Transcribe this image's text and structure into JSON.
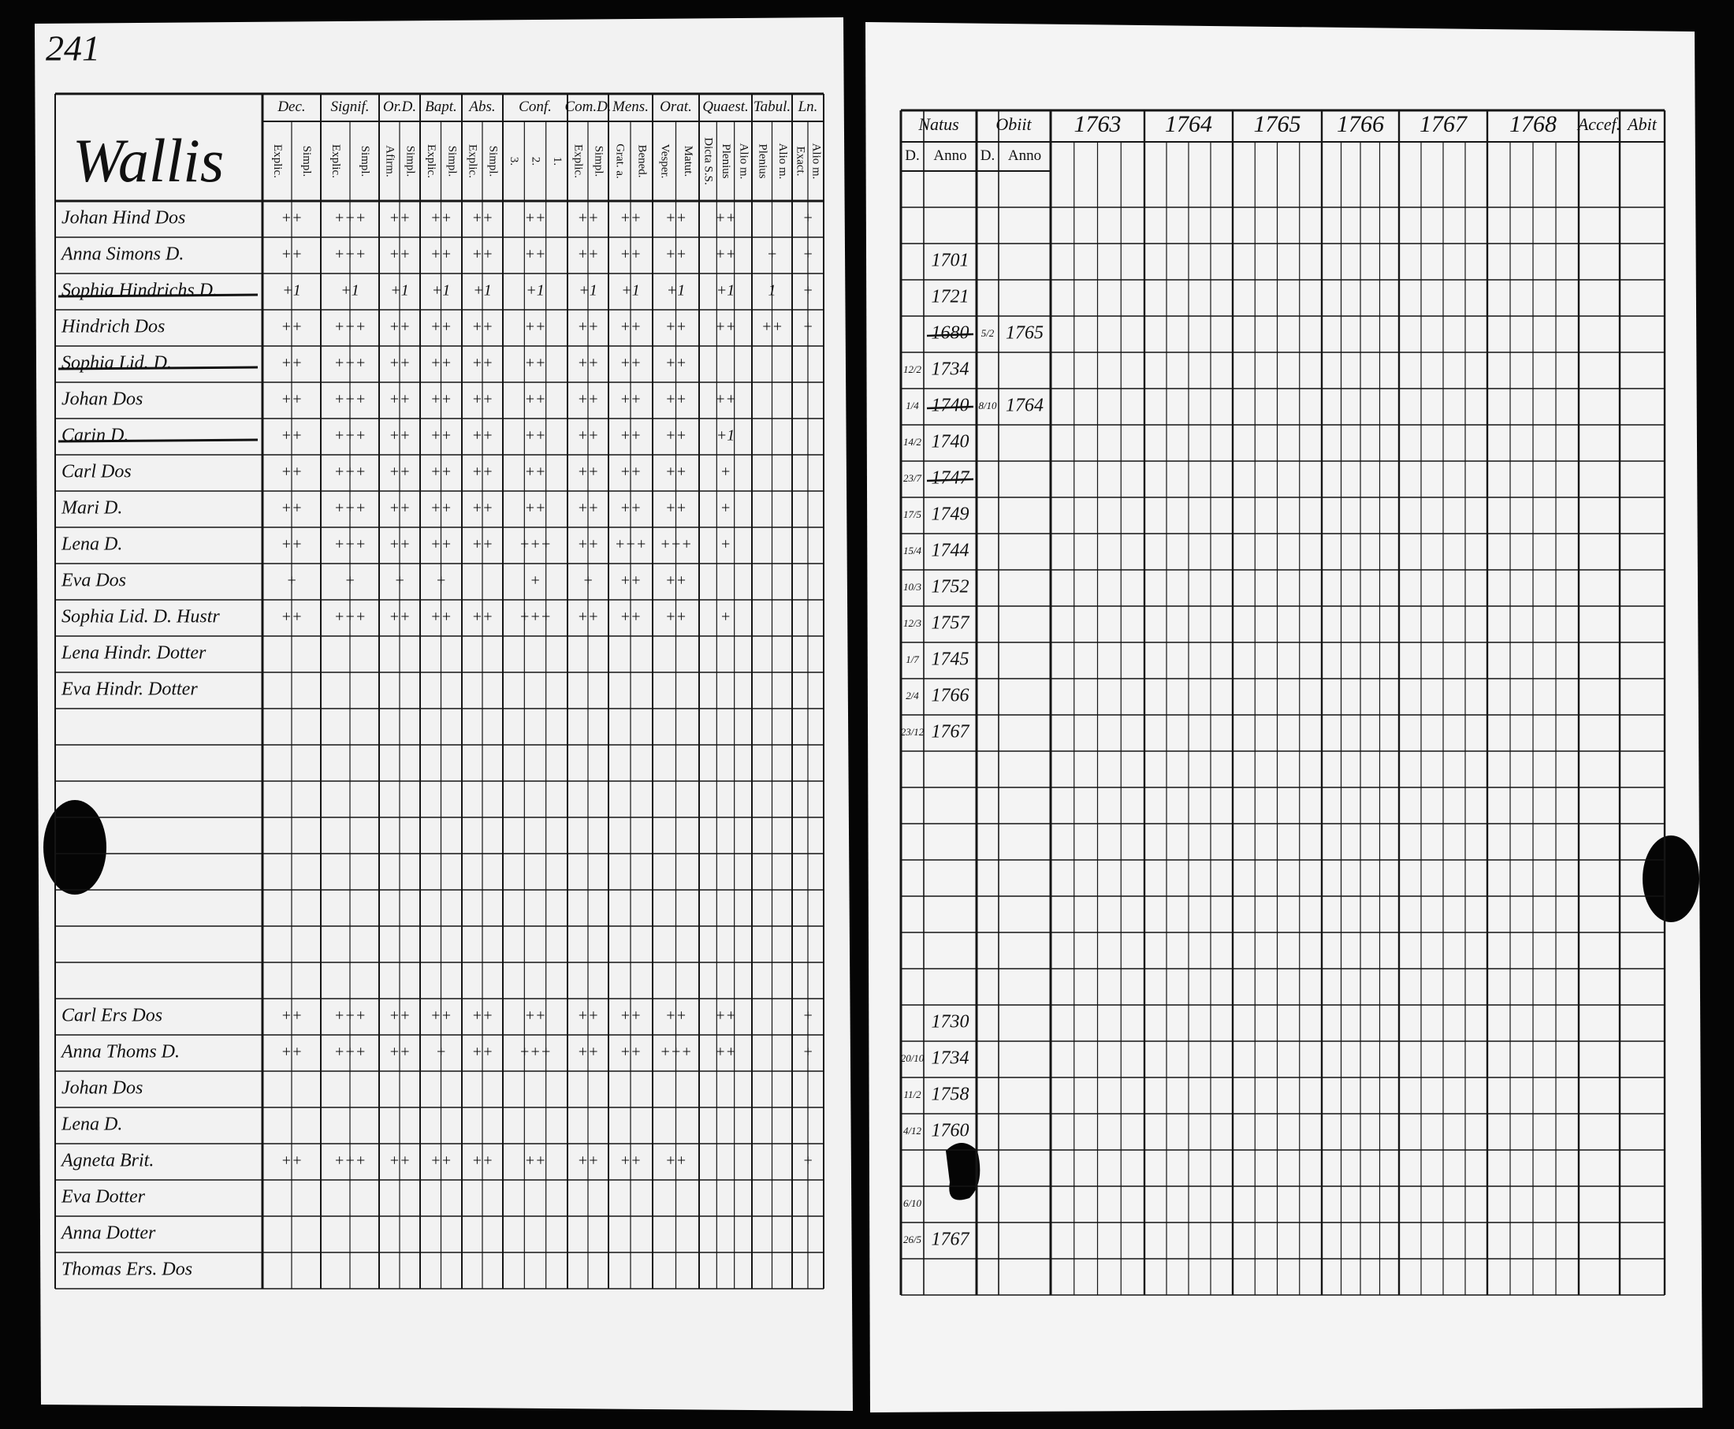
{
  "left_page": {
    "page_number": "241",
    "parish": "Wallis",
    "columns": [
      {
        "label": "Dec.",
        "sub": [
          "Explic.",
          "Simpl."
        ]
      },
      {
        "label": "Signif.",
        "sub": [
          "Explic.",
          "Simpl."
        ]
      },
      {
        "label": "Or.D.",
        "sub": [
          "Afirm.",
          "Simpl."
        ]
      },
      {
        "label": "Bapt.",
        "sub": [
          "Explic.",
          "Simpl."
        ]
      },
      {
        "label": "Abs.",
        "sub": [
          "Explic.",
          "Simpl."
        ]
      },
      {
        "label": "Conf.",
        "sub": [
          "3.",
          "2.",
          "1."
        ]
      },
      {
        "label": "Com.D.",
        "sub": [
          "Explic.",
          "Simpl."
        ]
      },
      {
        "label": "Mens.",
        "sub": [
          "Grat. a.",
          "Bened."
        ]
      },
      {
        "label": "Orat.",
        "sub": [
          "Vesper.",
          "Matut."
        ]
      },
      {
        "label": "Quaest.",
        "sub": [
          "Dicta S.S.",
          "Plenius",
          "Alio m."
        ]
      },
      {
        "label": "Tabul.",
        "sub": [
          "Plenius",
          "Alio m."
        ]
      },
      {
        "label": "Ln.",
        "sub": [
          "Exact.",
          "Alio m."
        ]
      }
    ],
    "rows": [
      {
        "name": "Johan Hind Dos",
        "marks": [
          "++",
          "+++",
          "++",
          "++",
          "++",
          "++",
          "++",
          "++",
          "++",
          "++",
          null,
          "+"
        ]
      },
      {
        "name": "Anna Simons D.",
        "marks": [
          "++",
          "+++",
          "++",
          "++",
          "++",
          "++",
          "++",
          "++",
          "++",
          "++",
          "+",
          "+"
        ]
      },
      {
        "name": "Sophia Hindrichs D.",
        "struck": true,
        "marks": [
          "+1",
          "+1",
          "+1",
          "+1",
          "+1",
          "+1",
          "+1",
          "+1",
          "+1",
          "+1",
          "1",
          "+"
        ]
      },
      {
        "name": "Hindrich Dos",
        "marks": [
          "++",
          "+++",
          "++",
          "++",
          "++",
          "++",
          "++",
          "++",
          "++",
          "++",
          "++",
          "+"
        ]
      },
      {
        "name": "Sophia Lid. D.",
        "struck": true,
        "marks": [
          "++",
          "+++",
          "++",
          "++",
          "++",
          "++",
          "++",
          "++",
          "++",
          null,
          null,
          null
        ]
      },
      {
        "name": "Johan Dos",
        "marks": [
          "++",
          "+++",
          "++",
          "++",
          "++",
          "++",
          "++",
          "++",
          "++",
          "++",
          null,
          null
        ]
      },
      {
        "name": "Carin D.",
        "struck": true,
        "marks": [
          "++",
          "+++",
          "++",
          "++",
          "++",
          "++",
          "++",
          "++",
          "++",
          "+1",
          null,
          null
        ]
      },
      {
        "name": "Carl Dos",
        "marks": [
          "++",
          "+++",
          "++",
          "++",
          "++",
          "++",
          "++",
          "++",
          "++",
          "+",
          null,
          null
        ]
      },
      {
        "name": "Mari D.",
        "marks": [
          "++",
          "+++",
          "++",
          "++",
          "++",
          "++",
          "++",
          "++",
          "++",
          "+",
          null,
          null
        ]
      },
      {
        "name": "Lena D.",
        "marks": [
          "++",
          "+++",
          "++",
          "++",
          "++",
          "+++",
          "++",
          "+++",
          "+++",
          "+",
          null,
          null
        ]
      },
      {
        "name": "Eva Dos",
        "marks": [
          "+",
          "+",
          "+",
          "+",
          null,
          "+",
          "+",
          "++",
          "++",
          null,
          null,
          null
        ]
      },
      {
        "name": "Sophia Lid. D. Hustr",
        "marks": [
          "++",
          "+++",
          "++",
          "++",
          "++",
          "+++",
          "++",
          "++",
          "++",
          "+",
          null,
          null
        ]
      },
      {
        "name": "Lena Hindr. Dotter"
      },
      {
        "name": "Eva Hindr. Dotter"
      },
      null,
      null,
      null,
      null,
      null,
      null,
      null,
      null,
      {
        "name": "Carl Ers Dos",
        "marks": [
          "++",
          "+++",
          "++",
          "++",
          "++",
          "++",
          "++",
          "++",
          "++",
          "++",
          null,
          "+"
        ]
      },
      {
        "name": "Anna Thoms D.",
        "marks": [
          "++",
          "+++",
          "++",
          "+",
          "++",
          "+++",
          "++",
          "++",
          "+++",
          "++",
          null,
          "+"
        ]
      },
      {
        "name": "Johan Dos"
      },
      {
        "name": "Lena D."
      },
      {
        "name": "Agneta Brit.",
        "marks": [
          "++",
          "+++",
          "++",
          "++",
          "++",
          "++",
          "++",
          "++",
          "++",
          null,
          null,
          "+"
        ]
      },
      {
        "name": "Eva Dotter"
      },
      {
        "name": "Anna Dotter"
      },
      {
        "name": "Thomas Ers. Dos"
      }
    ]
  },
  "right_page": {
    "headers": [
      "Natus",
      "Obiit",
      "1763",
      "1764",
      "1765",
      "1766",
      "1767",
      "1768",
      "Accef.",
      "Abit"
    ],
    "subheaders": [
      "D.",
      "Anno",
      "D.",
      "Anno"
    ],
    "rows": [
      null,
      null,
      {
        "anno": "1701"
      },
      {
        "anno": "1721"
      },
      {
        "anno": "1680",
        "struck": true,
        "obiit_d": "5/2",
        "obiit_anno": "1765"
      },
      {
        "d": "12/2",
        "anno": "1734"
      },
      {
        "d": "1/4",
        "anno": "1740",
        "struck": true,
        "obiit_d": "8/10",
        "obiit_anno": "1764"
      },
      {
        "d": "14/2",
        "anno": "1740"
      },
      {
        "d": "23/7",
        "anno": "1747",
        "struck": true
      },
      {
        "d": "17/5",
        "anno": "1749"
      },
      {
        "d": "15/4",
        "anno": "1744"
      },
      {
        "d": "10/3",
        "anno": "1752"
      },
      {
        "d": "12/3",
        "anno": "1757"
      },
      {
        "d": "1/7",
        "anno": "1745"
      },
      {
        "d": "2/4",
        "anno": "1766"
      },
      {
        "d": "23/12",
        "anno": "1767"
      },
      null,
      null,
      null,
      null,
      null,
      null,
      null,
      {
        "anno": "1730"
      },
      {
        "d": "20/10",
        "anno": "1734"
      },
      {
        "d": "11/2",
        "anno": "1758"
      },
      {
        "d": "4/12",
        "anno": "1760"
      },
      null,
      {
        "d": "6/10"
      },
      {
        "d": "26/5",
        "anno": "1767"
      },
      null
    ]
  }
}
